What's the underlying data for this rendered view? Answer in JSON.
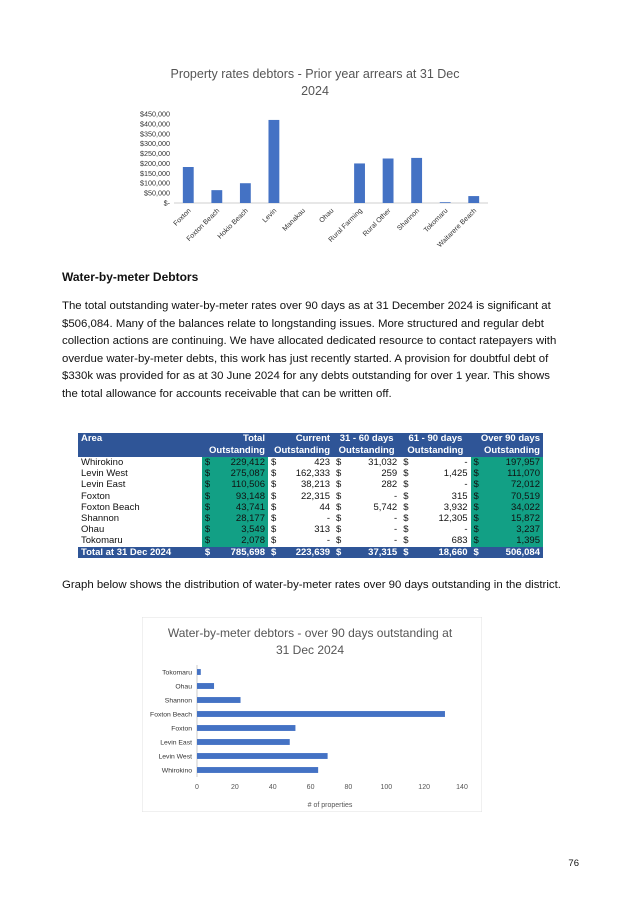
{
  "chart1": {
    "type": "bar",
    "title_line1": "Property rates debtors - Prior year arrears at 31 Dec",
    "title_line2": "2024",
    "categories": [
      "Foxton",
      "Foxton Beach",
      "Hokio Beach",
      "Levin",
      "Manakau",
      "Ohau",
      "Rural Farming",
      "Rural Other",
      "Shannon",
      "Tokomaru",
      "Waitarere Beach"
    ],
    "values": [
      182000,
      65000,
      100000,
      420000,
      0,
      0,
      200000,
      225000,
      228000,
      4000,
      35000
    ],
    "ylim": [
      0,
      450000
    ],
    "yticks": [
      "$-",
      "$50,000",
      "$100,000",
      "$150,000",
      "$200,000",
      "$250,000",
      "$300,000",
      "$350,000",
      "$400,000",
      "$450,000"
    ],
    "bar_color": "#4472c4"
  },
  "section_heading": "Water-by-meter Debtors",
  "paragraph1": "The total outstanding water-by-meter rates over 90 days as at 31 December 2024 is significant at $506,084. Many of the balances relate to longstanding issues. More structured and regular debt collection actions are continuing. We have allocated dedicated resource to contact ratepayers with overdue water-by-meter debts, this work has just recently started. A provision for doubtful debt of $330k was provided for as at 30 June 2024 for any debts outstanding for over 1 year. This shows the total allowance for accounts receivable that can be written off.",
  "table": {
    "headers_line1": [
      "Area",
      "Total",
      "Current",
      "31 - 60 days",
      "61 - 90 days",
      "Over 90 days"
    ],
    "headers_line2": [
      "",
      "Outstanding",
      "Outstanding",
      "Outstanding",
      "Outstanding",
      "Outstanding"
    ],
    "currency": "$",
    "rows": [
      {
        "area": "Whirokino",
        "total": "229,412",
        "current": "423",
        "d31_60": "31,032",
        "d61_90": "-",
        "over90": "197,957"
      },
      {
        "area": "Levin West",
        "total": "275,087",
        "current": "162,333",
        "d31_60": "259",
        "d61_90": "1,425",
        "over90": "111,070"
      },
      {
        "area": "Levin East",
        "total": "110,506",
        "current": "38,213",
        "d31_60": "282",
        "d61_90": "-",
        "over90": "72,012"
      },
      {
        "area": "Foxton",
        "total": "93,148",
        "current": "22,315",
        "d31_60": "-",
        "d61_90": "315",
        "over90": "70,519"
      },
      {
        "area": "Foxton Beach",
        "total": "43,741",
        "current": "44",
        "d31_60": "5,742",
        "d61_90": "3,932",
        "over90": "34,022"
      },
      {
        "area": "Shannon",
        "total": "28,177",
        "current": "-",
        "d31_60": "-",
        "d61_90": "12,305",
        "over90": "15,872"
      },
      {
        "area": "Ohau",
        "total": "3,549",
        "current": "313",
        "d31_60": "-",
        "d61_90": "-",
        "over90": "3,237"
      },
      {
        "area": "Tokomaru",
        "total": "2,078",
        "current": "-",
        "d31_60": "-",
        "d61_90": "683",
        "over90": "1,395"
      }
    ],
    "total_row": {
      "area": "Total at 31 Dec 2024",
      "total": "785,698",
      "current": "223,639",
      "d31_60": "37,315",
      "d61_90": "18,660",
      "over90": "506,084"
    },
    "header_color": "#2f5597",
    "highlight_color": "#12a085"
  },
  "paragraph2": "Graph below shows the distribution of water-by-meter rates over 90 days outstanding in the district.",
  "chart2": {
    "type": "bar",
    "orientation": "horizontal",
    "title_line1": "Water-by-meter debtors - over 90 days outstanding at",
    "title_line2": "31 Dec 2024",
    "categories": [
      "Tokomaru",
      "Ohau",
      "Shannon",
      "Foxton Beach",
      "Foxton",
      "Levin East",
      "Levin West",
      "Whirokino"
    ],
    "values": [
      2,
      9,
      23,
      131,
      52,
      49,
      69,
      64
    ],
    "xlim": [
      0,
      140
    ],
    "xticks": [
      "0",
      "20",
      "40",
      "60",
      "80",
      "100",
      "120",
      "140"
    ],
    "xlabel": "# of properties",
    "bar_color": "#4472c4"
  },
  "page_number": "76"
}
